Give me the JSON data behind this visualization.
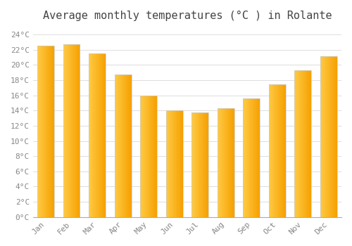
{
  "title": "Average monthly temperatures (°C ) in Rolante",
  "months": [
    "Jan",
    "Feb",
    "Mar",
    "Apr",
    "May",
    "Jun",
    "Jul",
    "Aug",
    "Sep",
    "Oct",
    "Nov",
    "Dec"
  ],
  "values": [
    22.5,
    22.7,
    21.5,
    18.7,
    16.0,
    14.0,
    13.7,
    14.3,
    15.6,
    17.4,
    19.3,
    21.1
  ],
  "bar_color_left": "#FFCA44",
  "bar_color_right": "#F5A000",
  "bar_edge_color": "#CCCCCC",
  "ylim": [
    0,
    25
  ],
  "yticks": [
    0,
    2,
    4,
    6,
    8,
    10,
    12,
    14,
    16,
    18,
    20,
    22,
    24
  ],
  "ytick_labels": [
    "0°C",
    "2°C",
    "4°C",
    "6°C",
    "8°C",
    "10°C",
    "12°C",
    "14°C",
    "16°C",
    "18°C",
    "20°C",
    "22°C",
    "24°C"
  ],
  "background_color": "#FFFFFF",
  "plot_bg_color": "#FFFFFF",
  "grid_color": "#DDDDDD",
  "title_fontsize": 11,
  "tick_fontsize": 8,
  "bar_width": 0.65,
  "gradient_steps": 100
}
